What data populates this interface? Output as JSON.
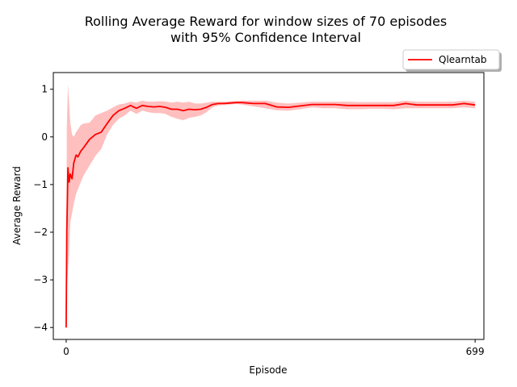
{
  "chart_data": {
    "type": "line",
    "title": [
      "Rolling Average Reward for window sizes of 70 episodes",
      "with 95% Confidence Interval"
    ],
    "xlabel": "Episode",
    "ylabel": "Average Reward",
    "xlim": [
      -22,
      714
    ],
    "ylim": [
      -4.25,
      1.35
    ],
    "xticks": [
      0,
      699
    ],
    "yticks": [
      1,
      0,
      -1,
      -2,
      -3,
      -4
    ],
    "yticklabels": [
      "1",
      "0",
      "−1",
      "−2",
      "−3",
      "−4"
    ],
    "grid": false,
    "legend_position": "top-right, above plot",
    "series": [
      {
        "name": "Qlearntab",
        "color": "#ff0000",
        "band_color": "#ff0000",
        "band_opacity": 0.25,
        "x": [
          0,
          1,
          3,
          5,
          7,
          10,
          13,
          17,
          20,
          25,
          30,
          40,
          50,
          60,
          70,
          80,
          90,
          100,
          110,
          120,
          130,
          140,
          150,
          160,
          170,
          180,
          190,
          200,
          210,
          220,
          230,
          240,
          250,
          260,
          270,
          280,
          290,
          300,
          320,
          340,
          360,
          380,
          400,
          420,
          440,
          460,
          480,
          500,
          520,
          540,
          560,
          580,
          600,
          620,
          640,
          660,
          680,
          699
        ],
        "y": [
          -4.0,
          -2.0,
          -0.65,
          -0.95,
          -0.78,
          -0.88,
          -0.55,
          -0.38,
          -0.42,
          -0.3,
          -0.22,
          -0.05,
          0.05,
          0.1,
          0.28,
          0.45,
          0.55,
          0.6,
          0.66,
          0.6,
          0.66,
          0.64,
          0.63,
          0.64,
          0.62,
          0.58,
          0.58,
          0.55,
          0.58,
          0.57,
          0.58,
          0.62,
          0.68,
          0.7,
          0.7,
          0.71,
          0.72,
          0.72,
          0.7,
          0.7,
          0.63,
          0.62,
          0.65,
          0.68,
          0.68,
          0.68,
          0.66,
          0.66,
          0.66,
          0.66,
          0.66,
          0.7,
          0.67,
          0.67,
          0.67,
          0.67,
          0.7,
          0.67
        ],
        "lower": [
          -4.0,
          -3.2,
          -2.8,
          -2.4,
          -1.8,
          -1.6,
          -1.4,
          -1.2,
          -1.1,
          -0.95,
          -0.8,
          -0.6,
          -0.4,
          -0.25,
          0.05,
          0.25,
          0.38,
          0.45,
          0.55,
          0.48,
          0.55,
          0.52,
          0.5,
          0.5,
          0.48,
          0.42,
          0.38,
          0.35,
          0.4,
          0.42,
          0.45,
          0.52,
          0.62,
          0.66,
          0.67,
          0.68,
          0.69,
          0.68,
          0.64,
          0.6,
          0.56,
          0.55,
          0.58,
          0.62,
          0.6,
          0.6,
          0.58,
          0.58,
          0.59,
          0.59,
          0.58,
          0.6,
          0.6,
          0.6,
          0.6,
          0.6,
          0.62,
          0.6
        ],
        "upper": [
          -4.0,
          0.2,
          1.1,
          0.7,
          0.3,
          0.05,
          0.0,
          0.1,
          0.15,
          0.25,
          0.28,
          0.3,
          0.45,
          0.5,
          0.55,
          0.62,
          0.68,
          0.7,
          0.74,
          0.72,
          0.76,
          0.74,
          0.74,
          0.75,
          0.74,
          0.72,
          0.74,
          0.72,
          0.74,
          0.7,
          0.7,
          0.72,
          0.74,
          0.74,
          0.74,
          0.75,
          0.75,
          0.76,
          0.76,
          0.76,
          0.72,
          0.7,
          0.72,
          0.74,
          0.74,
          0.74,
          0.74,
          0.73,
          0.73,
          0.73,
          0.73,
          0.76,
          0.74,
          0.74,
          0.74,
          0.74,
          0.76,
          0.74
        ]
      }
    ]
  }
}
